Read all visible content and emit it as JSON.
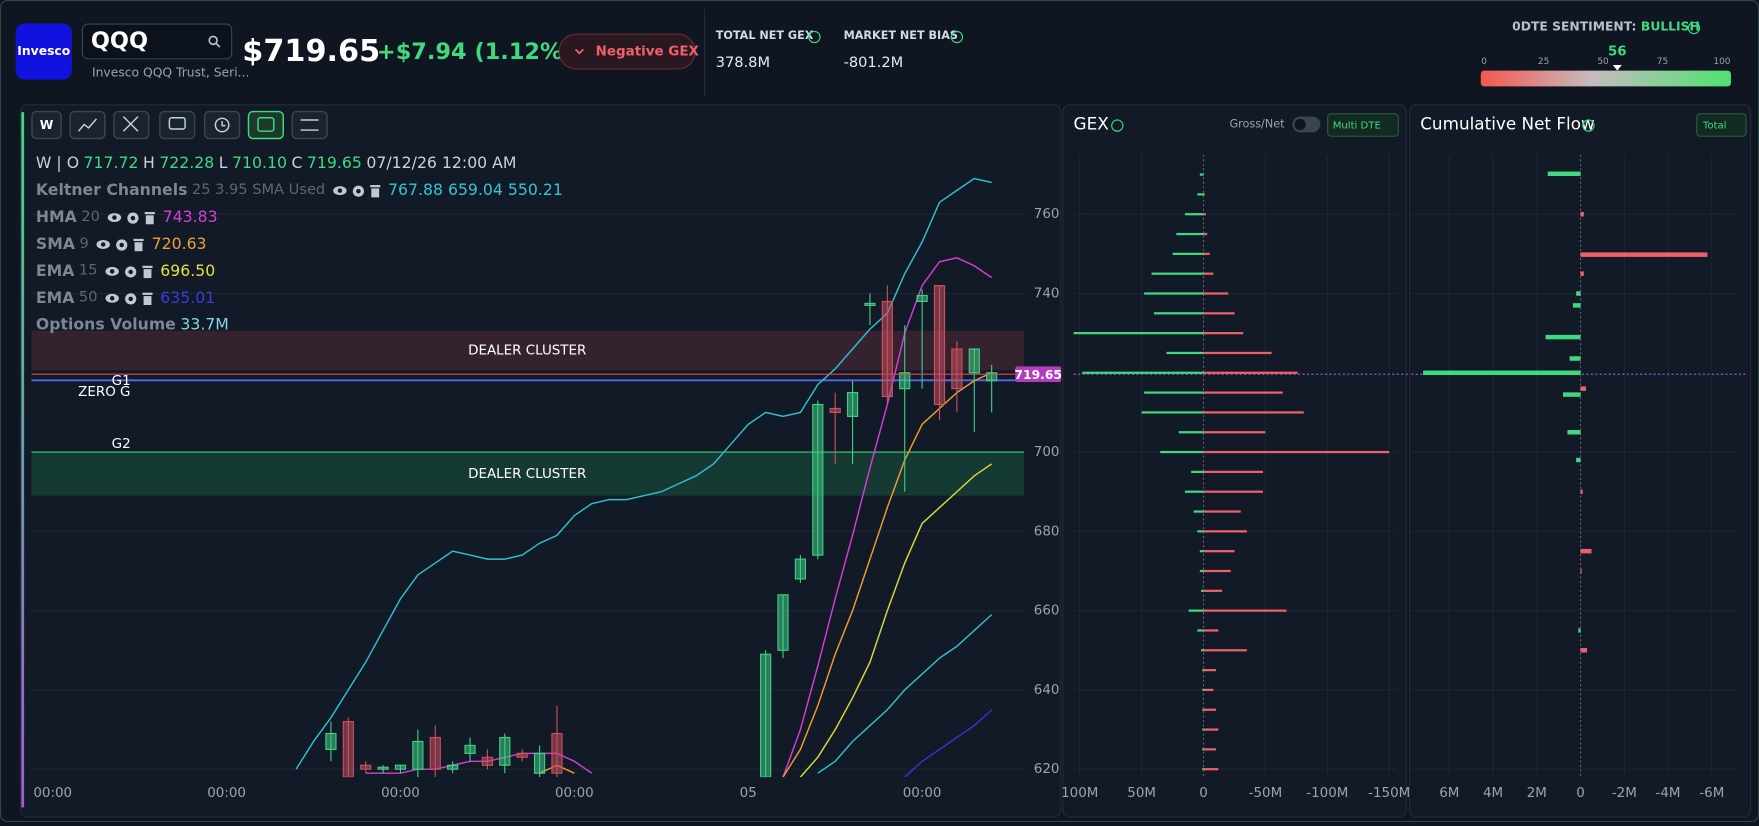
{
  "header": {
    "logo": "Invesco",
    "symbol": "QQQ",
    "name": "Invesco QQQ Trust, Seri...",
    "price": "$719.65",
    "change": "+$7.94 (1.12%)",
    "gex_badge": "Negative GEX",
    "stats": [
      {
        "label": "TOTAL NET GEX",
        "value": "378.8M"
      },
      {
        "label": "MARKET NET BIAS",
        "value": "-801.2M"
      }
    ],
    "sentiment": {
      "label": "0DTE SENTIMENT:",
      "state": "BULLISH",
      "value": 56,
      "ticks": [
        0,
        25,
        50,
        75,
        100
      ]
    }
  },
  "toolbar": {
    "interval": "W"
  },
  "legend": {
    "ohlc": [
      [
        "W | O",
        "717.72"
      ],
      [
        "H",
        "722.28"
      ],
      [
        "L",
        "710.10"
      ],
      [
        "C",
        "719.65"
      ]
    ],
    "date": "07/12/26 12:00 AM",
    "indicators": [
      {
        "name": "Keltner Channels",
        "params": "25 3.95 SMA Used",
        "values": "767.88 659.04 550.21",
        "color": "#35c4d4"
      },
      {
        "name": "HMA",
        "params": "20",
        "values": "743.83",
        "color": "#d63fd6"
      },
      {
        "name": "SMA",
        "params": "9",
        "values": "720.63",
        "color": "#f0a030"
      },
      {
        "name": "EMA",
        "params": "15",
        "values": "696.50",
        "color": "#e4e040"
      },
      {
        "name": "EMA",
        "params": "50",
        "values": "635.01",
        "color": "#3a3ae0"
      },
      {
        "name": "Options Volume",
        "values": "33.7M",
        "color": "#7fd6e6"
      }
    ]
  },
  "chart_data": [
    {
      "type": "candlestick",
      "up_color": "#3fcf85",
      "down_color": "#c9505f",
      "grid": true,
      "categories": [
        "00:00",
        null,
        null,
        null,
        null,
        null,
        null,
        null,
        null,
        null,
        "00:00",
        null,
        null,
        null,
        null,
        null,
        null,
        null,
        null,
        null,
        "00:00",
        null,
        null,
        null,
        null,
        null,
        null,
        null,
        null,
        null,
        "00:00",
        null,
        null,
        null,
        null,
        null,
        null,
        null,
        null,
        null,
        "05",
        null,
        null,
        null,
        null,
        null,
        null,
        null,
        null,
        null,
        "00:00",
        null,
        null,
        null,
        null
      ],
      "open": [
        null,
        null,
        null,
        null,
        null,
        null,
        null,
        null,
        null,
        null,
        null,
        null,
        null,
        null,
        null,
        null,
        625,
        632,
        621,
        620,
        620,
        620,
        628,
        620,
        624,
        623,
        621,
        624,
        619,
        629,
        null,
        null,
        null,
        null,
        null,
        null,
        null,
        null,
        null,
        null,
        null,
        618,
        650,
        668,
        674,
        711,
        709,
        737,
        738,
        716,
        738,
        742,
        726,
        720,
        718
      ],
      "high": [
        null,
        null,
        null,
        null,
        null,
        null,
        null,
        null,
        null,
        null,
        null,
        null,
        null,
        null,
        null,
        null,
        632,
        633,
        622,
        621,
        621,
        630,
        631,
        622,
        628,
        625,
        629,
        625,
        626,
        636,
        null,
        null,
        null,
        null,
        null,
        null,
        null,
        null,
        null,
        null,
        null,
        650,
        664,
        674,
        713,
        715,
        718,
        740,
        742,
        732,
        741,
        742,
        728,
        726,
        722
      ],
      "low": [
        null,
        null,
        null,
        null,
        null,
        null,
        null,
        null,
        null,
        null,
        null,
        null,
        null,
        null,
        null,
        null,
        622,
        618,
        619,
        619,
        619,
        618,
        618,
        619,
        622,
        620,
        619,
        622,
        618,
        618,
        null,
        null,
        null,
        null,
        null,
        null,
        null,
        null,
        null,
        null,
        null,
        618,
        648,
        667,
        673,
        697,
        697,
        732,
        712,
        690,
        716,
        708,
        710,
        705,
        710
      ],
      "close": [
        null,
        null,
        null,
        null,
        null,
        null,
        null,
        null,
        null,
        null,
        null,
        null,
        null,
        null,
        null,
        null,
        629,
        618,
        620,
        620.5,
        621,
        627,
        620,
        621,
        626,
        621,
        628,
        623,
        624,
        619,
        null,
        null,
        null,
        null,
        null,
        null,
        null,
        null,
        null,
        null,
        null,
        649,
        664,
        673,
        712,
        710,
        715,
        737.5,
        714,
        720,
        739.5,
        712,
        716,
        726,
        720
      ],
      "lines": [
        {
          "color": "#2fbfd0",
          "values": [
            null,
            null,
            null,
            null,
            null,
            null,
            null,
            null,
            null,
            null,
            null,
            null,
            null,
            null,
            620,
            627,
            633,
            640,
            647,
            655,
            663,
            669,
            672,
            675,
            674,
            673,
            673,
            674,
            677,
            679,
            684,
            687,
            688,
            688,
            689,
            690,
            692,
            694,
            697,
            702,
            707,
            710,
            709,
            710,
            717,
            721,
            726,
            731,
            735,
            745,
            753,
            763,
            766,
            769,
            768
          ]
        },
        {
          "color": "#2fbfd0",
          "values": [
            null,
            null,
            null,
            null,
            null,
            null,
            null,
            null,
            null,
            null,
            null,
            null,
            null,
            null,
            null,
            null,
            null,
            null,
            null,
            null,
            null,
            null,
            null,
            null,
            null,
            null,
            null,
            null,
            null,
            null,
            null,
            null,
            null,
            null,
            null,
            null,
            null,
            null,
            null,
            null,
            null,
            null,
            null,
            null,
            619,
            622,
            627,
            631,
            635,
            640,
            644,
            648,
            651,
            655,
            659
          ]
        },
        {
          "color": "#d33fd3",
          "values": [
            null,
            null,
            null,
            null,
            null,
            null,
            null,
            null,
            null,
            null,
            null,
            null,
            null,
            null,
            null,
            null,
            null,
            null,
            619,
            619,
            619,
            620,
            620,
            621,
            622,
            622,
            623,
            624,
            624,
            624,
            622,
            619,
            null,
            null,
            null,
            null,
            null,
            null,
            null,
            null,
            null,
            null,
            618,
            630,
            646,
            663,
            679,
            696,
            712,
            730,
            742,
            748,
            749,
            747,
            744
          ]
        },
        {
          "color": "#f09a30",
          "values": [
            null,
            null,
            null,
            null,
            null,
            null,
            null,
            null,
            null,
            null,
            null,
            null,
            null,
            null,
            null,
            null,
            null,
            null,
            null,
            null,
            null,
            null,
            null,
            null,
            null,
            null,
            null,
            null,
            619,
            621,
            619,
            null,
            null,
            null,
            null,
            null,
            null,
            null,
            null,
            null,
            null,
            null,
            618,
            625,
            636,
            649,
            660,
            673,
            686,
            698,
            707,
            711,
            715,
            718,
            720
          ]
        },
        {
          "color": "#d8d83a",
          "values": [
            null,
            null,
            null,
            null,
            null,
            null,
            null,
            null,
            null,
            null,
            null,
            null,
            null,
            null,
            null,
            null,
            null,
            null,
            null,
            null,
            null,
            null,
            null,
            null,
            null,
            null,
            null,
            null,
            null,
            null,
            null,
            null,
            null,
            null,
            null,
            null,
            null,
            null,
            null,
            null,
            null,
            null,
            null,
            618,
            623,
            630,
            638,
            647,
            660,
            672,
            682,
            686,
            690,
            694,
            697
          ]
        },
        {
          "color": "#3535d8",
          "values": [
            null,
            null,
            null,
            null,
            null,
            null,
            null,
            null,
            null,
            null,
            null,
            null,
            null,
            null,
            null,
            null,
            null,
            null,
            null,
            null,
            null,
            null,
            null,
            null,
            null,
            null,
            null,
            null,
            null,
            null,
            null,
            null,
            null,
            null,
            null,
            null,
            null,
            null,
            null,
            null,
            null,
            null,
            null,
            null,
            null,
            null,
            null,
            null,
            null,
            618,
            622,
            625,
            628,
            631,
            635
          ]
        }
      ],
      "zones": [
        {
          "label": "DEALER CLUSTER",
          "range": [
            720.6,
            730.6
          ],
          "color": "#e0475a"
        },
        {
          "label": "DEALER CLUSTER",
          "range": [
            689,
            700
          ],
          "color": "#2ecc71"
        }
      ],
      "levels": [
        {
          "label": "G1",
          "value": 718.2,
          "color": "#5566f0"
        },
        {
          "label": "ZERO G",
          "value": 718,
          "color": "#5566f0"
        },
        {
          "label": "G2",
          "value": 700,
          "color": "#3fcf6a"
        }
      ],
      "price_line": 719.65,
      "price_color": "#e0475a",
      "tag_color": "#b43cc0",
      "ylim": [
        618,
        775
      ],
      "yticks": [
        620,
        640,
        660,
        680,
        700,
        740,
        760
      ]
    },
    {
      "type": "bar",
      "orientation": "horizontal",
      "title": "GEX",
      "toggle_label": "Gross/Net",
      "selector": "Multi DTE",
      "strikes": [
        770,
        765,
        760,
        755,
        750,
        745,
        740,
        735,
        730,
        725,
        720,
        715,
        710,
        705,
        700,
        695,
        690,
        685,
        680,
        675,
        670,
        665,
        660,
        655,
        650,
        645,
        640,
        635,
        630,
        625,
        620
      ],
      "series": [
        {
          "color": "#3fd97f",
          "values": [
            3,
            5,
            15,
            22,
            25,
            42,
            48,
            40,
            105,
            30,
            98,
            48,
            50,
            20,
            35,
            10,
            15,
            8,
            5,
            3,
            3,
            2,
            12,
            5,
            2,
            1,
            1,
            1,
            1,
            1,
            1
          ]
        },
        {
          "color": "#f0606a",
          "values": [
            0,
            -1,
            -2,
            -3,
            -5,
            -8,
            -20,
            -25,
            -32,
            -55,
            -76,
            -64,
            -81,
            -50,
            -150,
            -48,
            -48,
            -30,
            -35,
            -25,
            -22,
            -15,
            -67,
            -12,
            -35,
            -10,
            -8,
            -10,
            -12,
            -10,
            -12
          ]
        }
      ],
      "xlim": [
        105,
        -156
      ],
      "xticks": [
        {
          "value": 100,
          "label": "100M"
        },
        {
          "value": 50,
          "label": "50M"
        },
        0,
        {
          "value": -50,
          "label": "-50M"
        },
        {
          "value": -100,
          "label": "-100M"
        },
        {
          "value": -150,
          "label": "-150M"
        }
      ],
      "ylim": [
        618,
        775
      ],
      "yticks": [
        620,
        640,
        660,
        680,
        700,
        740,
        760
      ]
    },
    {
      "type": "bar",
      "orientation": "horizontal",
      "title": "Cumulative Net Flow",
      "selector": "Total",
      "positive_color": "#3fd97f",
      "negative_color": "#f0606a",
      "strikes": [
        770.2,
        760,
        749.8,
        745,
        740,
        737,
        729,
        723.6,
        720,
        716,
        714.5,
        705,
        698,
        690,
        675,
        670,
        655,
        650
      ],
      "values": [
        1.5,
        -0.15,
        -5.8,
        -0.15,
        0.2,
        0.35,
        1.6,
        0.5,
        7.2,
        -0.25,
        0.8,
        0.6,
        0.2,
        -0.1,
        -0.5,
        -0.05,
        0.1,
        -0.3
      ],
      "xlim": [
        7.74,
        -7.08
      ],
      "xticks": [
        {
          "value": 6,
          "label": "6M"
        },
        {
          "value": 4,
          "label": "4M"
        },
        {
          "value": 2,
          "label": "2M"
        },
        0,
        {
          "value": -2,
          "label": "-2M"
        },
        {
          "value": -4,
          "label": "-4M"
        },
        {
          "value": -6,
          "label": "-6M"
        }
      ],
      "ylim": [
        618,
        775
      ],
      "yticks": [
        620,
        640,
        660,
        680,
        700,
        740,
        760
      ]
    }
  ]
}
